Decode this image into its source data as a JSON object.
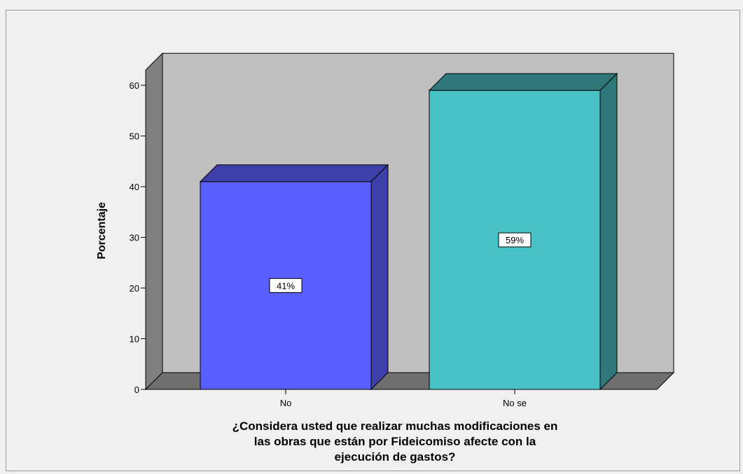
{
  "chart_data": {
    "type": "bar",
    "categories": [
      "No",
      "No se"
    ],
    "values": [
      41,
      59
    ],
    "data_labels": [
      "41%",
      "59%"
    ],
    "ylabel": "Porcentaje",
    "xlabel_lines": [
      "¿Considera usted que realizar muchas modificaciones en",
      "las obras que están por Fideicomiso afecte con la",
      "ejecución de gastos?"
    ],
    "ylim": [
      0,
      60
    ],
    "y_ticks": [
      0,
      10,
      20,
      30,
      40,
      50,
      60
    ],
    "y_tick_labels": [
      "0",
      "10",
      "20",
      "30",
      "40",
      "50",
      "60"
    ],
    "grid": false,
    "style": "3d",
    "colors": {
      "bars": [
        "#5a5eff",
        "#48c2c6"
      ],
      "bar_sides": [
        "#3d3ea8",
        "#2e7879"
      ],
      "bar_tops": [
        "#3d3ea8",
        "#2e7879"
      ],
      "plot_back": "#c0c0c0",
      "plot_left_wall": "#808080",
      "plot_floor": "#6f6f6f"
    }
  }
}
